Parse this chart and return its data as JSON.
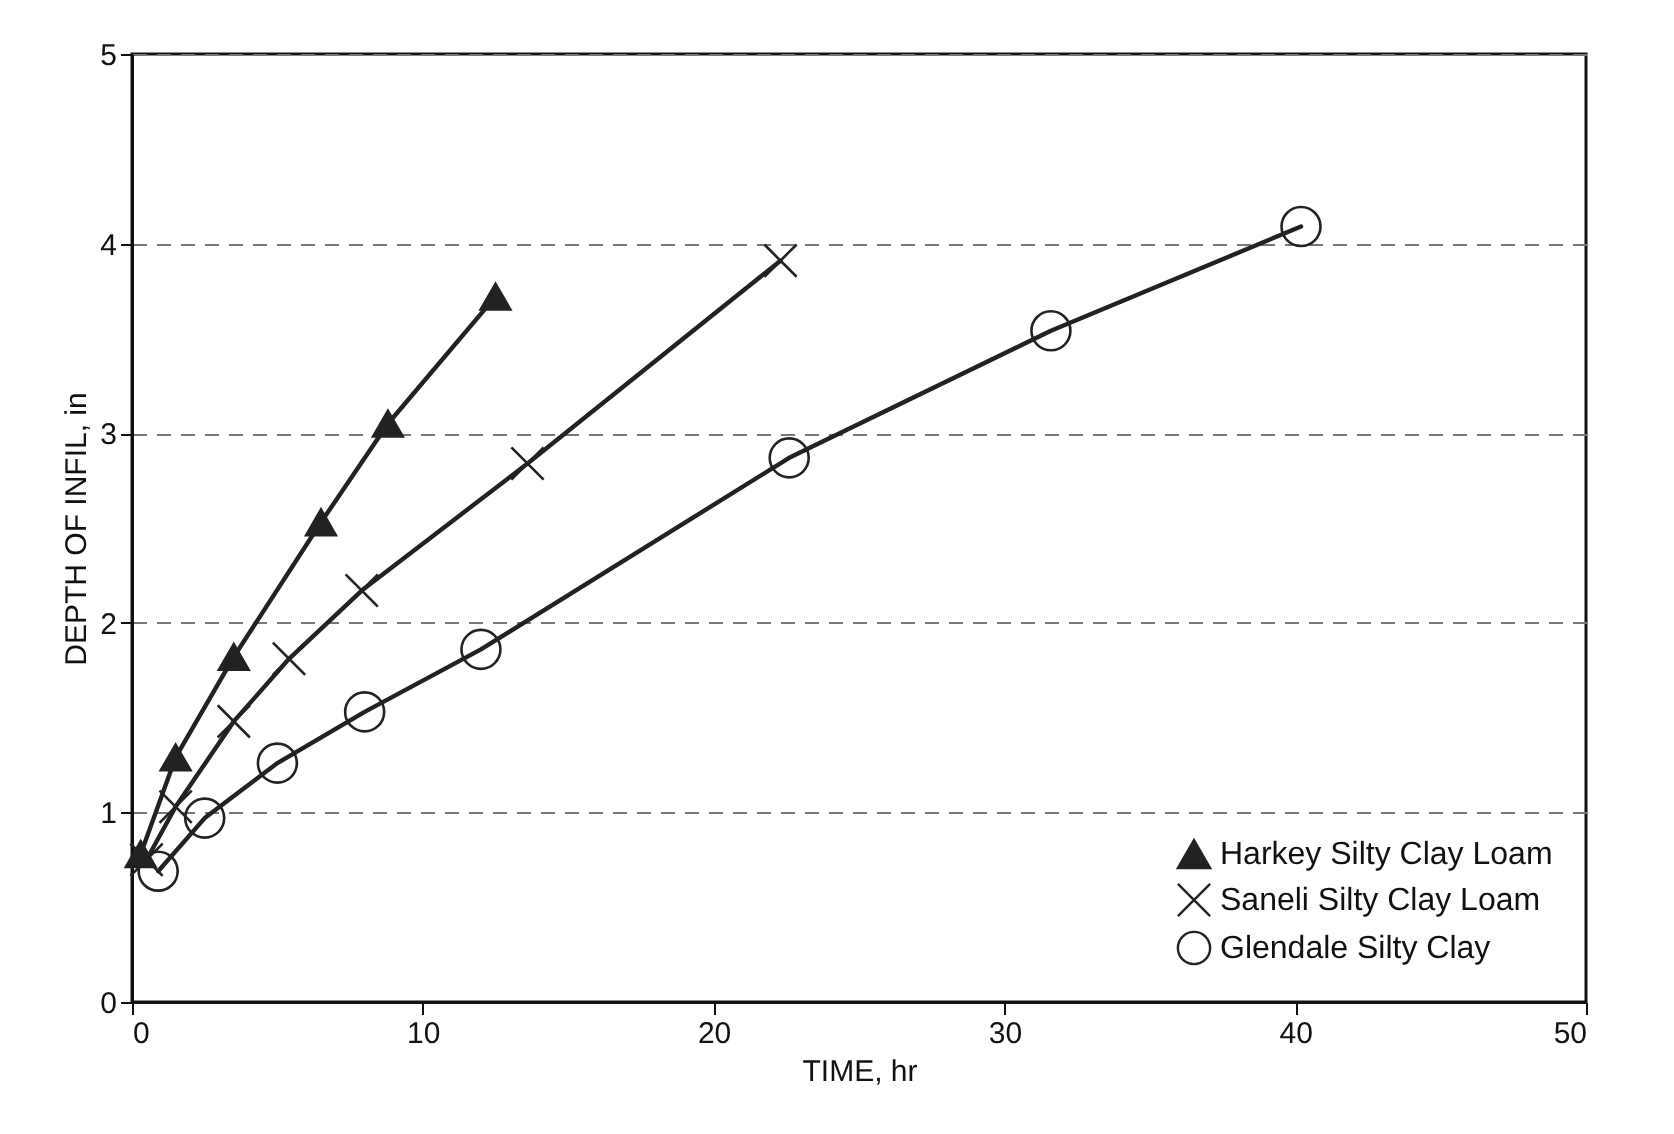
{
  "chart_data": {
    "type": "line",
    "xlabel": "TIME, hr",
    "ylabel": "DEPTH OF INFIL, in",
    "xlim": [
      0,
      50
    ],
    "xticks": [
      0,
      10,
      20,
      30,
      40,
      50
    ],
    "ylim": [
      0,
      5
    ],
    "yticks": [
      0,
      1,
      2,
      3,
      4,
      5
    ],
    "grid": "y",
    "legend": "bottom right",
    "series": [
      {
        "name": "Harkey Silty Clay Loam",
        "color": "#222222",
        "marker": "triangle",
        "x": [
          0.3,
          1.5,
          3.5,
          6.5,
          8.8,
          12.5
        ],
        "values": [
          0.78,
          1.29,
          1.82,
          2.53,
          3.05,
          3.72
        ]
      },
      {
        "name": "Saneli Silty Clay Loam",
        "color": "#222222",
        "marker": "cross",
        "x": [
          0.5,
          1.5,
          3.5,
          5.4,
          7.9,
          13.6,
          22.3
        ],
        "values": [
          0.75,
          1.03,
          1.48,
          1.81,
          2.17,
          2.84,
          3.91
        ]
      },
      {
        "name": "Glendale Silty Clay",
        "color": "#222222",
        "marker": "circle",
        "x": [
          0.9,
          2.5,
          5.0,
          8.0,
          12.0,
          22.6,
          31.6,
          40.2
        ],
        "values": [
          0.69,
          0.97,
          1.26,
          1.53,
          1.86,
          2.87,
          3.54,
          4.09
        ]
      }
    ]
  }
}
